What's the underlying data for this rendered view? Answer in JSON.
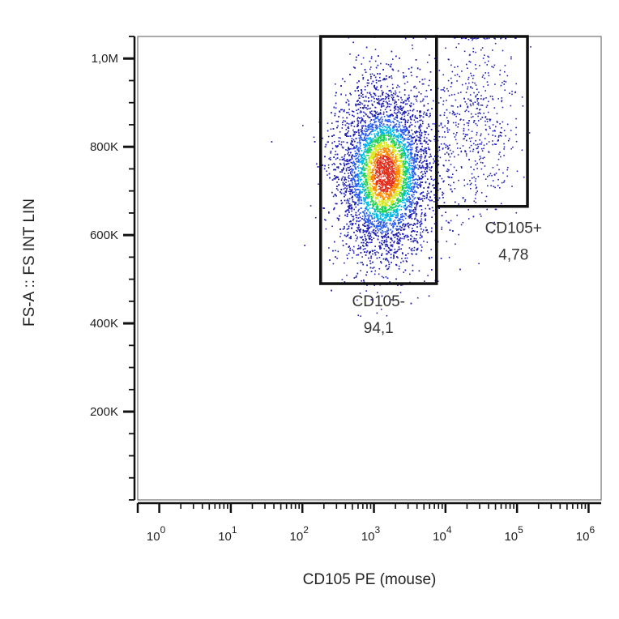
{
  "chart_data": {
    "type": "scatter",
    "plot_style": "pseudocolor density dot plot",
    "title": "",
    "xlabel": "CD105 PE (mouse)",
    "ylabel": "FS-A :: FS INT LIN",
    "x_scale": "log",
    "y_scale": "linear",
    "xlim": [
      0.5,
      1500000
    ],
    "ylim": [
      0,
      1050000
    ],
    "x_ticks": [
      {
        "value": 1,
        "base": "10",
        "exp": "0"
      },
      {
        "value": 10,
        "base": "10",
        "exp": "1"
      },
      {
        "value": 100,
        "base": "10",
        "exp": "2"
      },
      {
        "value": 1000,
        "base": "10",
        "exp": "3"
      },
      {
        "value": 10000,
        "base": "10",
        "exp": "4"
      },
      {
        "value": 100000,
        "base": "10",
        "exp": "5"
      },
      {
        "value": 1000000,
        "base": "10",
        "exp": "6"
      }
    ],
    "y_ticks": [
      {
        "value": 200000,
        "label": "200K"
      },
      {
        "value": 400000,
        "label": "400K"
      },
      {
        "value": 600000,
        "label": "600K"
      },
      {
        "value": 800000,
        "label": "800K"
      },
      {
        "value": 1000000,
        "label": "1,0M"
      }
    ],
    "grid": false,
    "legend": "none",
    "colormap": [
      "#1f1fb4",
      "#2b5cf0",
      "#00b8e6",
      "#21d15a",
      "#d8e81e",
      "#ff8a00",
      "#e0301e"
    ],
    "populations": [
      {
        "x_center": 1400,
        "x_log_sd": 0.33,
        "y_center": 740000,
        "y_sd": 95000,
        "share": 0.941
      },
      {
        "x_center": 25000,
        "x_log_sd": 0.3,
        "y_center": 860000,
        "y_sd": 110000,
        "share": 0.0478
      }
    ],
    "gates": [
      {
        "name": "CD105-",
        "percent": "94,1",
        "x_range": [
          180,
          7500
        ],
        "y_range": [
          490000,
          1050000
        ]
      },
      {
        "name": "CD105+",
        "percent": "4,78",
        "x_range": [
          7500,
          140000
        ],
        "y_range": [
          665000,
          1050000
        ]
      }
    ]
  }
}
